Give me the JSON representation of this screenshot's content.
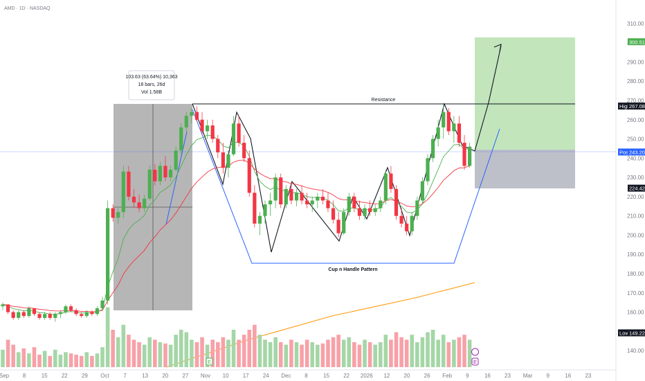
{
  "header": {
    "symbol_line": "AMD · 1D · NASDAQ"
  },
  "colors": {
    "up": "#4caf50",
    "down": "#f23645",
    "vol_up": "#a5d6a7",
    "vol_down": "#f7a1a8",
    "ema_fast": "#4caf50",
    "ema_slow": "#f23645",
    "sma_long": "#ff9800",
    "pattern_line": "#2962ff",
    "target_zone": "#b7e1b0",
    "stop_zone": "#b2b5be",
    "measure_box": "#9e9e9e"
  },
  "annotations": {
    "resistance": "Resistance",
    "pattern": "Cup n Handle Pattern",
    "measure": {
      "line1": "103.63 (63.64%) 10,363",
      "line2": "18 bars, 26d",
      "line3": "Vol 1.58B"
    }
  },
  "price_tags": [
    {
      "label": "",
      "value": "300.51",
      "bg": "#4caf50",
      "fg": "#ffffff"
    },
    {
      "label": "High",
      "value": "267.08",
      "bg": "#131722",
      "fg": "#ffffff"
    },
    {
      "label": "Post",
      "value": "243.20",
      "bg": "#2962ff",
      "fg": "#ffffff"
    },
    {
      "label": "",
      "value": "224.42",
      "bg": "#131722",
      "fg": "#ffffff"
    },
    {
      "label": "Low",
      "value": "149.22",
      "bg": "#131722",
      "fg": "#ffffff"
    }
  ],
  "event_markers": [
    "E",
    "E"
  ],
  "chart_data": {
    "type": "candlestick",
    "y_ticks": [
      310,
      300,
      290,
      280,
      270,
      260,
      250,
      240,
      230,
      220,
      210,
      200,
      190,
      180,
      170,
      160,
      150,
      140
    ],
    "x_ticks": [
      "Sep",
      "8",
      "15",
      "22",
      "29",
      "Oct",
      "7",
      "13",
      "20",
      "27",
      "Nov",
      "10",
      "17",
      "24",
      "Dec",
      "8",
      "15",
      "22",
      "2026",
      "12",
      "20",
      "26",
      "Feb",
      "9",
      "16",
      "23",
      "Mar",
      "9",
      "16",
      "23"
    ],
    "ylim": [
      135,
      315
    ],
    "candles": [
      [
        163,
        165,
        161,
        164
      ],
      [
        164,
        164,
        159,
        160
      ],
      [
        160,
        161,
        156,
        157
      ],
      [
        157,
        161,
        156,
        160
      ],
      [
        160,
        161,
        157,
        158
      ],
      [
        158,
        163,
        157,
        162
      ],
      [
        162,
        162,
        158,
        159
      ],
      [
        159,
        160,
        156,
        157
      ],
      [
        157,
        160,
        156,
        159
      ],
      [
        159,
        160,
        156,
        157
      ],
      [
        157,
        160,
        155,
        159
      ],
      [
        159,
        161,
        157,
        160
      ],
      [
        160,
        164,
        159,
        163
      ],
      [
        163,
        164,
        160,
        161
      ],
      [
        161,
        162,
        158,
        159
      ],
      [
        159,
        160,
        157,
        158
      ],
      [
        158,
        161,
        157,
        160
      ],
      [
        160,
        161,
        158,
        159
      ],
      [
        159,
        163,
        158,
        162
      ],
      [
        162,
        168,
        161,
        166
      ],
      [
        166,
        218,
        164,
        214
      ],
      [
        214,
        216,
        207,
        209
      ],
      [
        209,
        214,
        206,
        212
      ],
      [
        212,
        236,
        209,
        233
      ],
      [
        233,
        236,
        218,
        220
      ],
      [
        220,
        224,
        214,
        217
      ],
      [
        217,
        221,
        212,
        214
      ],
      [
        214,
        221,
        212,
        219
      ],
      [
        219,
        236,
        218,
        234
      ],
      [
        234,
        237,
        226,
        228
      ],
      [
        228,
        238,
        226,
        236
      ],
      [
        236,
        241,
        228,
        230
      ],
      [
        230,
        236,
        228,
        234
      ],
      [
        234,
        246,
        233,
        244
      ],
      [
        244,
        258,
        242,
        256
      ],
      [
        256,
        264,
        254,
        262
      ],
      [
        262,
        266,
        258,
        264
      ],
      [
        264,
        267,
        259,
        260
      ],
      [
        260,
        264,
        252,
        254
      ],
      [
        254,
        260,
        250,
        257
      ],
      [
        257,
        260,
        248,
        250
      ],
      [
        250,
        252,
        240,
        243
      ],
      [
        243,
        248,
        232,
        235
      ],
      [
        235,
        244,
        230,
        242
      ],
      [
        242,
        262,
        241,
        258
      ],
      [
        258,
        262,
        246,
        248
      ],
      [
        248,
        252,
        238,
        240
      ],
      [
        240,
        244,
        220,
        222
      ],
      [
        222,
        226,
        204,
        206
      ],
      [
        206,
        212,
        200,
        210
      ],
      [
        210,
        218,
        206,
        216
      ],
      [
        216,
        222,
        210,
        218
      ],
      [
        218,
        232,
        214,
        230
      ],
      [
        230,
        232,
        214,
        216
      ],
      [
        216,
        226,
        214,
        224
      ],
      [
        224,
        226,
        216,
        218
      ],
      [
        218,
        224,
        215,
        222
      ],
      [
        222,
        226,
        216,
        218
      ],
      [
        218,
        222,
        214,
        216
      ],
      [
        216,
        220,
        212,
        218
      ],
      [
        218,
        222,
        214,
        220
      ],
      [
        220,
        224,
        216,
        218
      ],
      [
        218,
        222,
        212,
        214
      ],
      [
        214,
        218,
        206,
        208
      ],
      [
        208,
        212,
        199,
        201
      ],
      [
        201,
        214,
        200,
        212
      ],
      [
        212,
        222,
        210,
        220
      ],
      [
        220,
        222,
        212,
        214
      ],
      [
        214,
        218,
        208,
        210
      ],
      [
        210,
        216,
        208,
        214
      ],
      [
        214,
        218,
        210,
        212
      ],
      [
        212,
        216,
        210,
        214
      ],
      [
        214,
        220,
        212,
        218
      ],
      [
        218,
        234,
        216,
        232
      ],
      [
        232,
        236,
        222,
        224
      ],
      [
        224,
        226,
        208,
        210
      ],
      [
        210,
        214,
        204,
        206
      ],
      [
        206,
        210,
        200,
        202
      ],
      [
        202,
        212,
        200,
        210
      ],
      [
        210,
        220,
        208,
        218
      ],
      [
        218,
        230,
        216,
        228
      ],
      [
        228,
        242,
        226,
        240
      ],
      [
        240,
        252,
        238,
        250
      ],
      [
        250,
        260,
        246,
        256
      ],
      [
        256,
        267,
        250,
        264
      ],
      [
        264,
        266,
        252,
        254
      ],
      [
        254,
        262,
        248,
        258
      ],
      [
        258,
        262,
        246,
        248
      ],
      [
        248,
        252,
        234,
        236
      ],
      [
        236,
        248,
        235,
        246
      ]
    ],
    "volume": [
      14,
      22,
      18,
      12,
      15,
      11,
      16,
      10,
      13,
      9,
      14,
      10,
      12,
      11,
      10,
      9,
      12,
      9,
      11,
      16,
      48,
      30,
      24,
      34,
      26,
      22,
      20,
      18,
      24,
      22,
      20,
      19,
      18,
      26,
      30,
      28,
      22,
      20,
      24,
      18,
      22,
      20,
      24,
      22,
      30,
      22,
      26,
      30,
      34,
      26,
      22,
      20,
      24,
      20,
      18,
      22,
      20,
      18,
      22,
      20,
      18,
      19,
      22,
      24,
      26,
      22,
      24,
      20,
      18,
      22,
      20,
      18,
      20,
      26,
      22,
      28,
      24,
      22,
      26,
      20,
      24,
      28,
      30,
      22,
      26,
      20,
      22,
      24,
      26,
      22
    ],
    "vol_max": 50
  }
}
